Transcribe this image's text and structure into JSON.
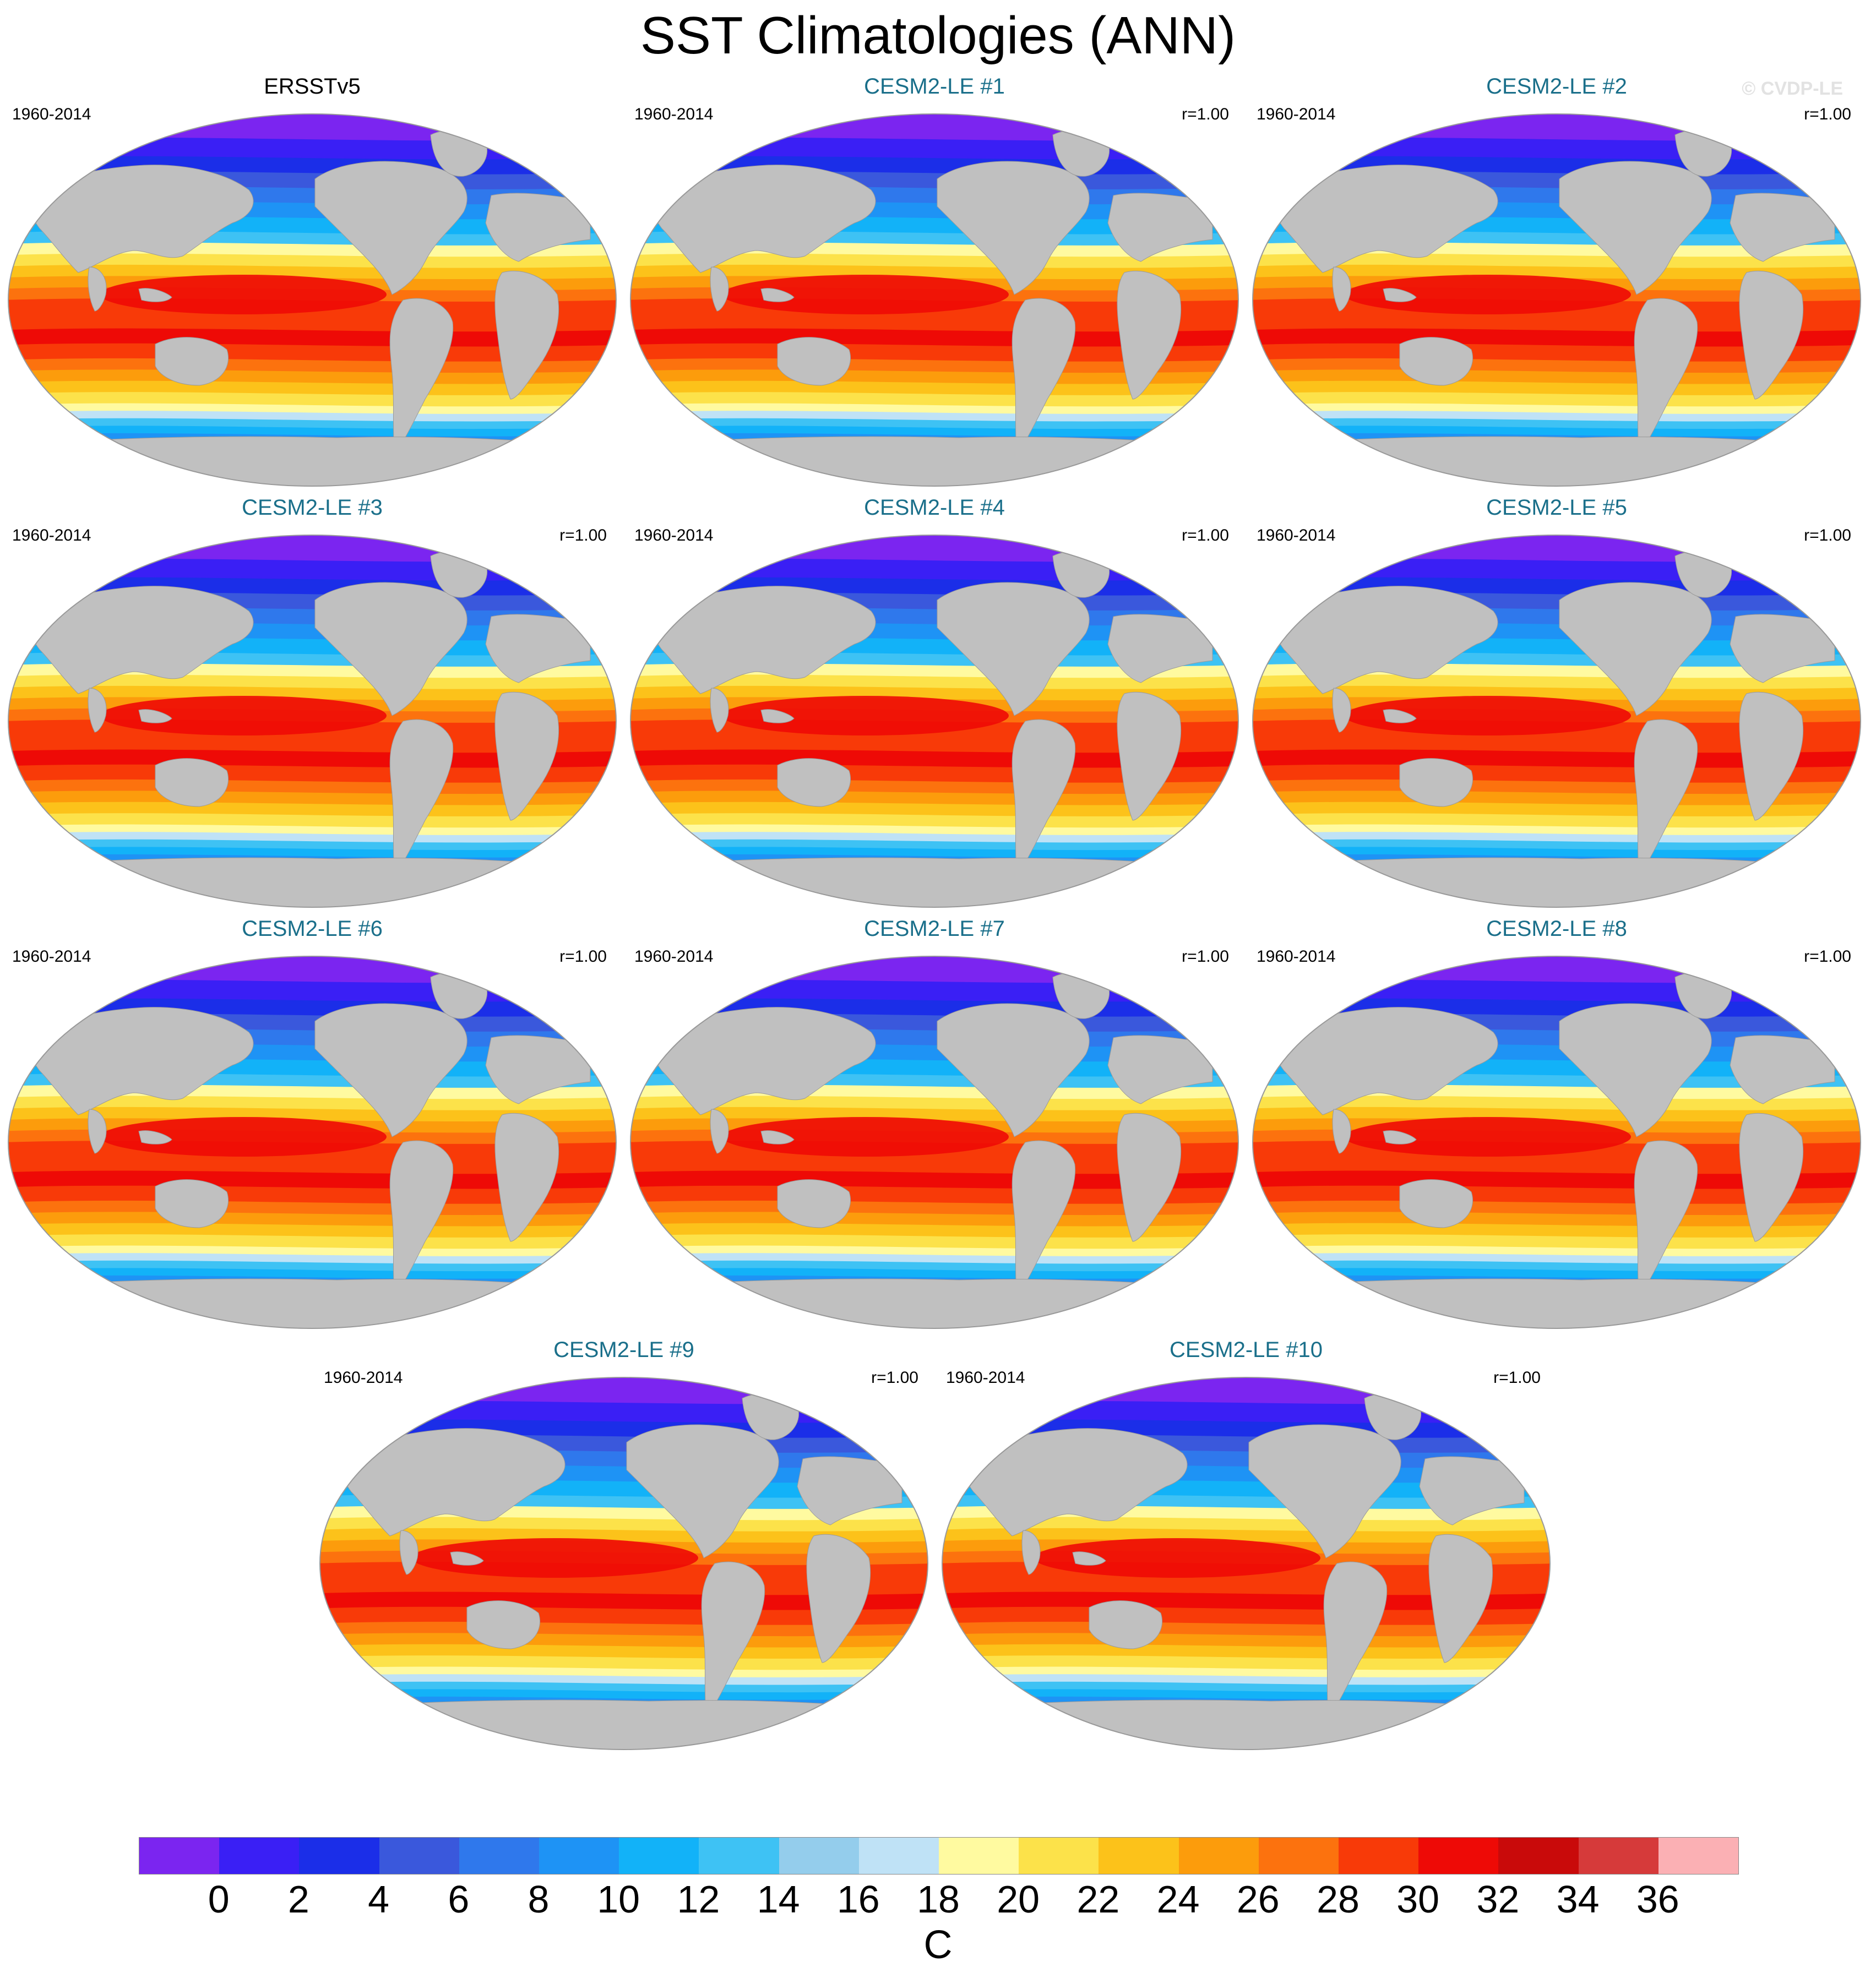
{
  "title": "SST Climatologies (ANN)",
  "watermark": "© CVDP-LE",
  "panels": [
    {
      "title": "ERSSTv5",
      "period": "1960-2014",
      "corr": "",
      "observed": true
    },
    {
      "title": "CESM2-LE #1",
      "period": "1960-2014",
      "corr": "r=1.00",
      "observed": false
    },
    {
      "title": "CESM2-LE #2",
      "period": "1960-2014",
      "corr": "r=1.00",
      "observed": false
    },
    {
      "title": "CESM2-LE #3",
      "period": "1960-2014",
      "corr": "r=1.00",
      "observed": false
    },
    {
      "title": "CESM2-LE #4",
      "period": "1960-2014",
      "corr": "r=1.00",
      "observed": false
    },
    {
      "title": "CESM2-LE #5",
      "period": "1960-2014",
      "corr": "r=1.00",
      "observed": false
    },
    {
      "title": "CESM2-LE #6",
      "period": "1960-2014",
      "corr": "r=1.00",
      "observed": false
    },
    {
      "title": "CESM2-LE #7",
      "period": "1960-2014",
      "corr": "r=1.00",
      "observed": false
    },
    {
      "title": "CESM2-LE #8",
      "period": "1960-2014",
      "corr": "r=1.00",
      "observed": false
    },
    {
      "title": "CESM2-LE #9",
      "period": "1960-2014",
      "corr": "r=1.00",
      "observed": false
    },
    {
      "title": "CESM2-LE #10",
      "period": "1960-2014",
      "corr": "r=1.00",
      "observed": false
    }
  ],
  "colorbar": {
    "units": "C",
    "tick_labels": [
      "0",
      "2",
      "4",
      "6",
      "8",
      "10",
      "12",
      "14",
      "16",
      "18",
      "20",
      "22",
      "24",
      "26",
      "28",
      "30",
      "32",
      "34",
      "36"
    ],
    "colors": [
      "#7b25f0",
      "#3a1ff5",
      "#1b2ee8",
      "#3a58dc",
      "#2f78ec",
      "#1e93f5",
      "#12b2f8",
      "#3ec2f4",
      "#94cdec",
      "#bfe2f6",
      "#fffaa0",
      "#fce24a",
      "#fcc21a",
      "#fc9c0c",
      "#fc720e",
      "#f83a08",
      "#ee0a06",
      "#c90a0a",
      "#d63a3a",
      "#fbb0b4"
    ]
  },
  "land_color": "#c0c0c0"
}
